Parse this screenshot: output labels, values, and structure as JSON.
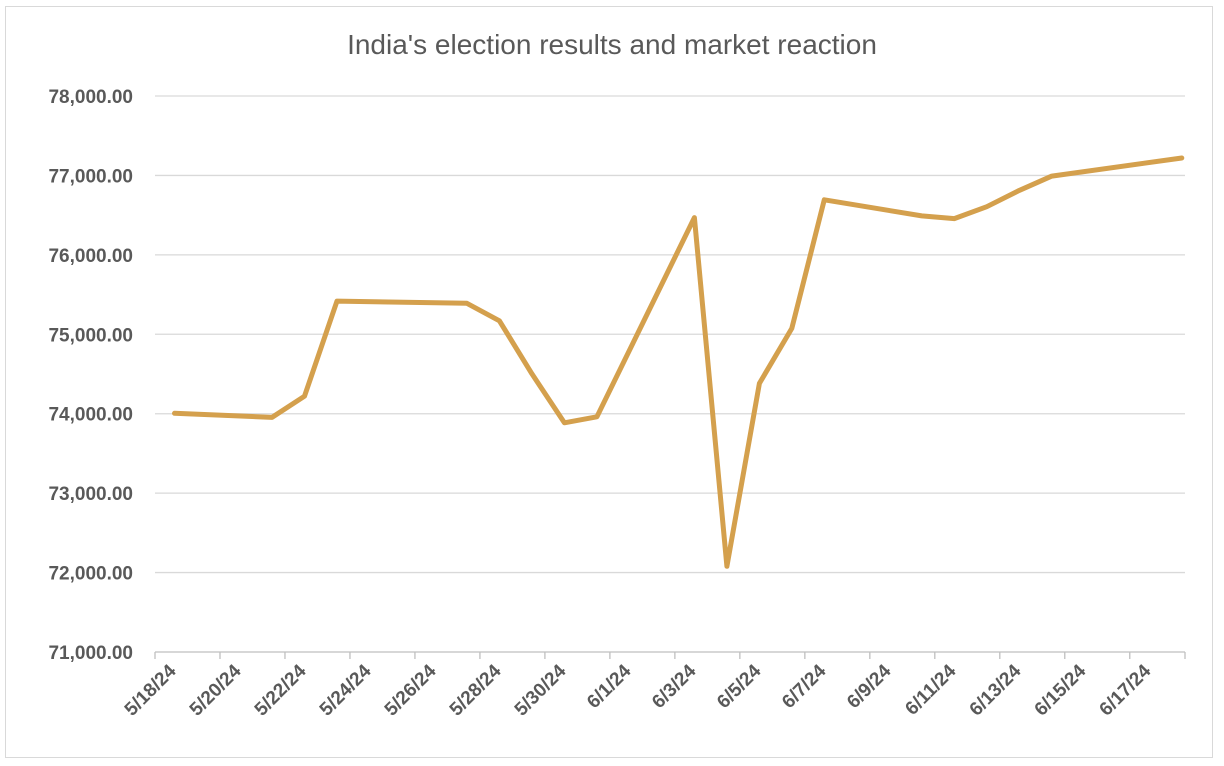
{
  "chart_data": {
    "type": "line",
    "title": "India's election results and market reaction",
    "xlabel": "",
    "ylabel": "",
    "ylim": [
      71000,
      78000
    ],
    "grid": true,
    "legend": "none",
    "y_ticks": [
      "71,000.00",
      "72,000.00",
      "73,000.00",
      "74,000.00",
      "75,000.00",
      "76,000.00",
      "77,000.00",
      "78,000.00"
    ],
    "x_ticks": [
      "5/18/24",
      "5/20/24",
      "5/22/24",
      "5/24/24",
      "5/26/24",
      "5/28/24",
      "5/30/24",
      "6/1/24",
      "6/3/24",
      "6/5/24",
      "6/7/24",
      "6/9/24",
      "6/11/24",
      "6/13/24",
      "6/15/24",
      "6/17/24"
    ],
    "series": [
      {
        "color": "#d4a04d",
        "points": [
          {
            "x": "5/18/24",
            "y": 74005
          },
          {
            "x": "5/21/24",
            "y": 73953
          },
          {
            "x": "5/22/24",
            "y": 74221
          },
          {
            "x": "5/23/24",
            "y": 75418
          },
          {
            "x": "5/27/24",
            "y": 75390
          },
          {
            "x": "5/28/24",
            "y": 75170
          },
          {
            "x": "5/29/24",
            "y": 74503
          },
          {
            "x": "5/30/24",
            "y": 73886
          },
          {
            "x": "5/31/24",
            "y": 73961
          },
          {
            "x": "6/3/24",
            "y": 76469
          },
          {
            "x": "6/4/24",
            "y": 72079
          },
          {
            "x": "6/5/24",
            "y": 74382
          },
          {
            "x": "6/6/24",
            "y": 75074
          },
          {
            "x": "6/7/24",
            "y": 76693
          },
          {
            "x": "6/10/24",
            "y": 76490
          },
          {
            "x": "6/11/24",
            "y": 76456
          },
          {
            "x": "6/12/24",
            "y": 76606
          },
          {
            "x": "6/13/24",
            "y": 76811
          },
          {
            "x": "6/14/24",
            "y": 76992
          },
          {
            "x": "6/18/24",
            "y": 77220
          }
        ]
      }
    ]
  }
}
